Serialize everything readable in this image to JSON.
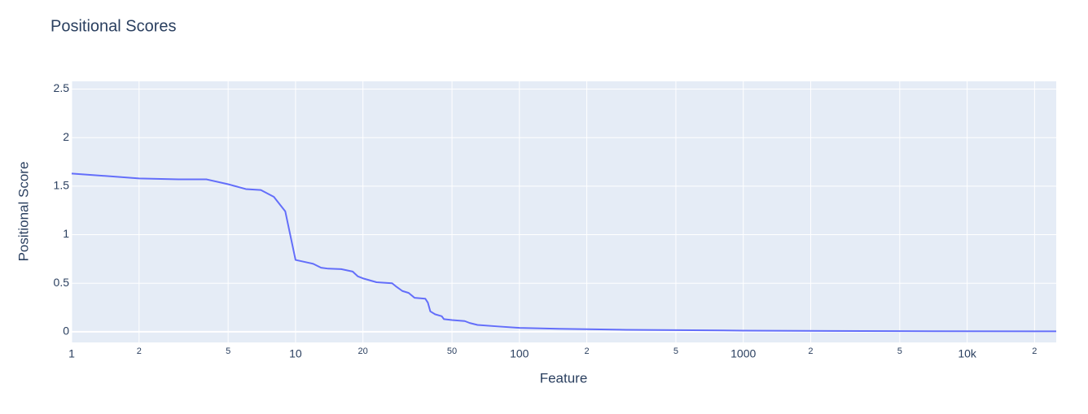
{
  "chart_data": {
    "type": "line",
    "title": "Positional Scores",
    "x_label": "Feature",
    "y_label": "Positional Score",
    "x_scale": "log",
    "grid": true,
    "color": "#636efa",
    "x": [
      1,
      2,
      3,
      4,
      5,
      6,
      7,
      8,
      9,
      10,
      12,
      13,
      14,
      16,
      18,
      19,
      20,
      23,
      27,
      28,
      30,
      32,
      34,
      38,
      39,
      40,
      42,
      45,
      46,
      50,
      57,
      60,
      65,
      80,
      100,
      150,
      300,
      1000,
      5000,
      25000
    ],
    "values": [
      1.63,
      1.58,
      1.57,
      1.57,
      1.52,
      1.47,
      1.46,
      1.39,
      1.24,
      0.74,
      0.7,
      0.66,
      0.65,
      0.645,
      0.62,
      0.57,
      0.55,
      0.51,
      0.5,
      0.47,
      0.42,
      0.4,
      0.35,
      0.34,
      0.3,
      0.21,
      0.18,
      0.16,
      0.13,
      0.12,
      0.11,
      0.09,
      0.07,
      0.055,
      0.04,
      0.03,
      0.02,
      0.012,
      0.006,
      0.004
    ],
    "xlim": [
      1,
      25000
    ],
    "ylim": [
      -0.11,
      2.58
    ],
    "xticks": [
      1,
      2,
      5,
      10,
      20,
      50,
      100,
      {
        "value": 200,
        "label": "2"
      },
      {
        "value": 500,
        "label": "5"
      },
      1000,
      {
        "value": 2000,
        "label": "2"
      },
      {
        "value": 5000,
        "label": "5"
      },
      {
        "value": 10000,
        "label": "10k"
      },
      {
        "value": 20000,
        "label": "2"
      }
    ],
    "yticks": [
      0,
      0.5,
      1,
      1.5,
      2,
      2.5
    ]
  }
}
